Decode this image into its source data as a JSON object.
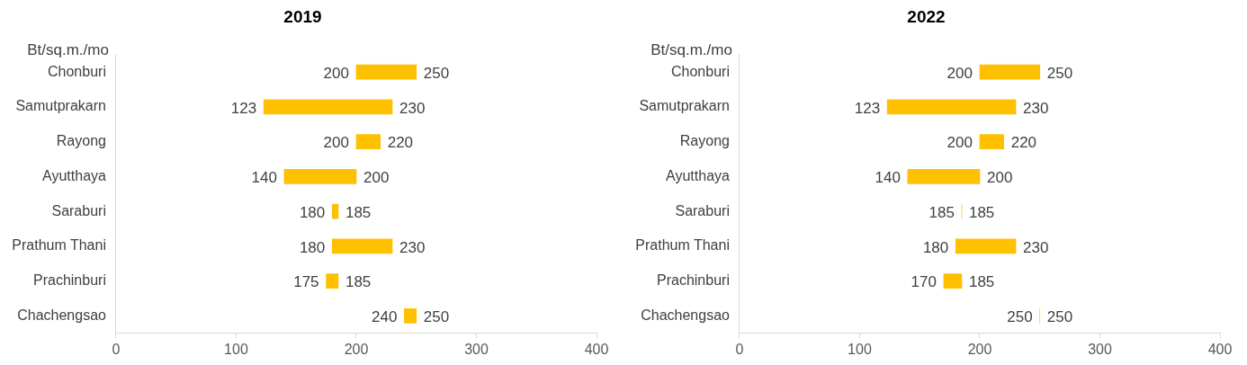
{
  "chart_data": [
    {
      "type": "bar",
      "orientation": "horizontal",
      "title": "2019",
      "ylabel": "Bt/sq.m./mo",
      "categories": [
        "Chonburi",
        "Samutprakarn",
        "Rayong",
        "Ayutthaya",
        "Saraburi",
        "Prathum Thani",
        "Prachinburi",
        "Chachengsao"
      ],
      "base": [
        200,
        123,
        200,
        140,
        180,
        180,
        175,
        240
      ],
      "values": [
        50,
        107,
        20,
        60,
        5,
        50,
        10,
        10
      ],
      "color": "#ffc000",
      "xlim": [
        0,
        400
      ],
      "xticks": [
        0,
        100,
        200,
        300,
        400
      ],
      "grid": false,
      "legend": false,
      "annotations": [
        {
          "text": "200",
          "x": 200,
          "y": "Chonburi"
        },
        {
          "text": "250",
          "x": 250,
          "y": "Chonburi"
        },
        {
          "text": "123",
          "x": 123,
          "y": "Samutprakarn"
        },
        {
          "text": "230",
          "x": 230,
          "y": "Samutprakarn"
        },
        {
          "text": "200",
          "x": 200,
          "y": "Rayong"
        },
        {
          "text": "220",
          "x": 220,
          "y": "Rayong"
        },
        {
          "text": "140",
          "x": 140,
          "y": "Ayutthaya"
        },
        {
          "text": "200",
          "x": 200,
          "y": "Ayutthaya"
        },
        {
          "text": "180",
          "x": 180,
          "y": "Saraburi"
        },
        {
          "text": "185",
          "x": 185,
          "y": "Saraburi"
        },
        {
          "text": "180",
          "x": 180,
          "y": "Prathum Thani"
        },
        {
          "text": "230",
          "x": 230,
          "y": "Prathum Thani"
        },
        {
          "text": "175",
          "x": 175,
          "y": "Prachinburi"
        },
        {
          "text": "185",
          "x": 185,
          "y": "Prachinburi"
        },
        {
          "text": "240",
          "x": 240,
          "y": "Chachengsao"
        },
        {
          "text": "250",
          "x": 250,
          "y": "Chachengsao"
        }
      ]
    },
    {
      "type": "bar",
      "orientation": "horizontal",
      "title": "2022",
      "ylabel": "Bt/sq.m./mo",
      "categories": [
        "Chonburi",
        "Samutprakarn",
        "Rayong",
        "Ayutthaya",
        "Saraburi",
        "Prathum Thani",
        "Prachinburi",
        "Chachengsao"
      ],
      "base": [
        200,
        123,
        200,
        140,
        185,
        180,
        170,
        250
      ],
      "values": [
        50,
        107,
        20,
        60,
        0,
        50,
        15,
        0
      ],
      "color": "#ffc000",
      "xlim": [
        0,
        400
      ],
      "xticks": [
        0,
        100,
        200,
        300,
        400
      ],
      "grid": false,
      "legend": false,
      "annotations": [
        {
          "text": "200",
          "x": 200,
          "y": "Chonburi"
        },
        {
          "text": "250",
          "x": 250,
          "y": "Chonburi"
        },
        {
          "text": "123",
          "x": 123,
          "y": "Samutprakarn"
        },
        {
          "text": "230",
          "x": 230,
          "y": "Samutprakarn"
        },
        {
          "text": "200",
          "x": 200,
          "y": "Rayong"
        },
        {
          "text": "220",
          "x": 220,
          "y": "Rayong"
        },
        {
          "text": "140",
          "x": 140,
          "y": "Ayutthaya"
        },
        {
          "text": "200",
          "x": 200,
          "y": "Ayutthaya"
        },
        {
          "text": "185",
          "x": 185,
          "y": "Saraburi"
        },
        {
          "text": "185",
          "x": 185,
          "y": "Saraburi"
        },
        {
          "text": "180",
          "x": 180,
          "y": "Prathum Thani"
        },
        {
          "text": "230",
          "x": 230,
          "y": "Prathum Thani"
        },
        {
          "text": "170",
          "x": 170,
          "y": "Prachinburi"
        },
        {
          "text": "185",
          "x": 185,
          "y": "Prachinburi"
        },
        {
          "text": "250",
          "x": 250,
          "y": "Chachengsao"
        },
        {
          "text": "250",
          "x": 250,
          "y": "Chachengsao"
        }
      ]
    }
  ]
}
